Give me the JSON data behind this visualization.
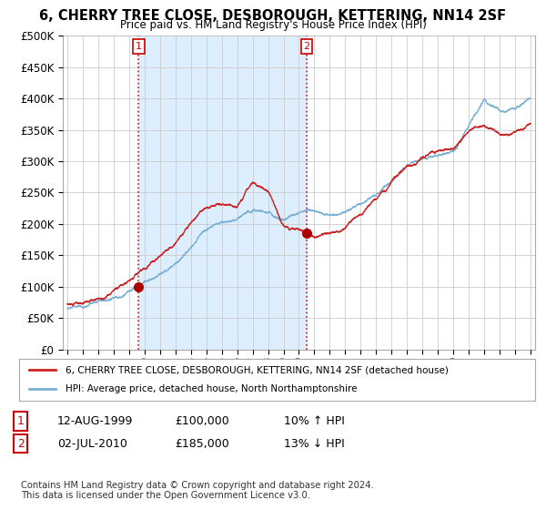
{
  "title": "6, CHERRY TREE CLOSE, DESBOROUGH, KETTERING, NN14 2SF",
  "subtitle": "Price paid vs. HM Land Registry's House Price Index (HPI)",
  "ylim": [
    0,
    500000
  ],
  "yticks": [
    0,
    50000,
    100000,
    150000,
    200000,
    250000,
    300000,
    350000,
    400000,
    450000,
    500000
  ],
  "ytick_labels": [
    "£0",
    "£50K",
    "£100K",
    "£150K",
    "£200K",
    "£250K",
    "£300K",
    "£350K",
    "£400K",
    "£450K",
    "£500K"
  ],
  "sale1_year": 1999.62,
  "sale1_price": 100000,
  "sale1_label": "1",
  "sale2_year": 2010.5,
  "sale2_price": 185000,
  "sale2_label": "2",
  "sale1_date": "12-AUG-1999",
  "sale1_amount": "£100,000",
  "sale1_hpi": "10% ↑ HPI",
  "sale2_date": "02-JUL-2010",
  "sale2_amount": "£185,000",
  "sale2_hpi": "13% ↓ HPI",
  "legend_line1": "6, CHERRY TREE CLOSE, DESBOROUGH, KETTERING, NN14 2SF (detached house)",
  "legend_line2": "HPI: Average price, detached house, North Northamptonshire",
  "footer": "Contains HM Land Registry data © Crown copyright and database right 2024.\nThis data is licensed under the Open Government Licence v3.0.",
  "line_color_red": "#cc2222",
  "line_color_blue": "#7ab0d4",
  "shade_color": "#ddeeff",
  "dot_color_red": "#aa0000",
  "vline_color": "#cc0000",
  "background_color": "#ffffff",
  "grid_color": "#cccccc",
  "xlim_left": 1994.7,
  "xlim_right": 2025.3
}
